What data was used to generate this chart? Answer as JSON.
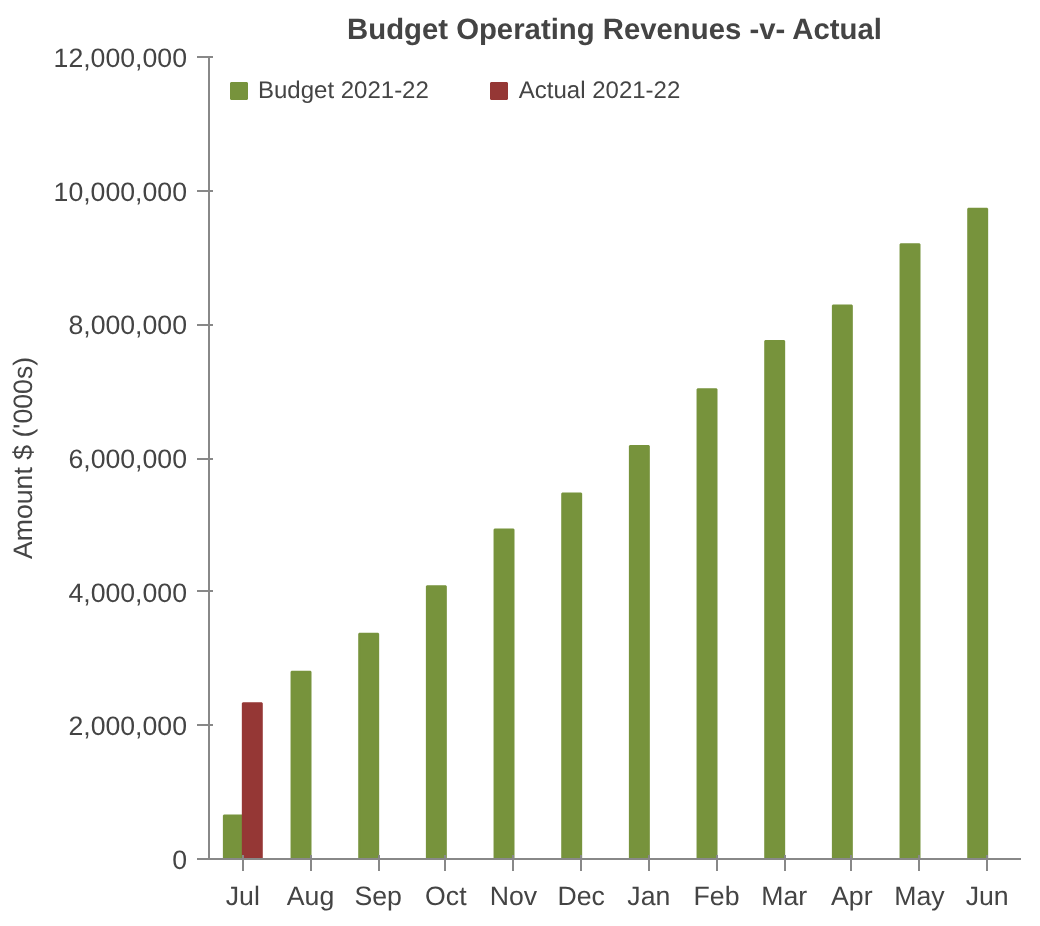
{
  "chart_data": {
    "type": "bar",
    "title": "Budget Operating Revenues -v- Actual",
    "ylabel": "Amount $ ('000s)",
    "categories": [
      "Jul",
      "Aug",
      "Sep",
      "Oct",
      "Nov",
      "Dec",
      "Jan",
      "Feb",
      "Mar",
      "Apr",
      "May",
      "Jun"
    ],
    "series": [
      {
        "name": "Budget 2021-22",
        "color": "#77933c",
        "values": [
          650000,
          2800000,
          3370000,
          4080000,
          4930000,
          5470000,
          6180000,
          7030000,
          7750000,
          8280000,
          9200000,
          9730000
        ]
      },
      {
        "name": "Actual 2021-22",
        "color": "#953735",
        "values": [
          2330000,
          null,
          null,
          null,
          null,
          null,
          null,
          null,
          null,
          null,
          null,
          null
        ]
      }
    ],
    "ylim": [
      0,
      12000000
    ],
    "yticks": [
      {
        "value": 0,
        "label": "0"
      },
      {
        "value": 2000000,
        "label": "2,000,000"
      },
      {
        "value": 4000000,
        "label": "4,000,000"
      },
      {
        "value": 6000000,
        "label": "6,000,000"
      },
      {
        "value": 8000000,
        "label": "8,000,000"
      },
      {
        "value": 10000000,
        "label": "10,000,000"
      },
      {
        "value": 12000000,
        "label": "12,000,000"
      }
    ],
    "legend": "top left",
    "grid": false
  }
}
